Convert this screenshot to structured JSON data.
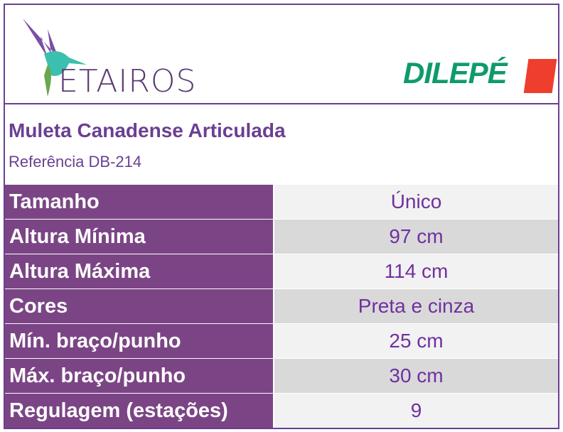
{
  "header": {
    "left_logo": "ETAIROS",
    "right_logo": "DILEPÉ"
  },
  "product": {
    "title": "Muleta Canadense Articulada",
    "reference": "Referência DB-214"
  },
  "colors": {
    "brand_purple": "#6b3f91",
    "label_bg": "#7b4585",
    "value_text": "#7030a0",
    "dilepe_green": "#0e9b6a",
    "dilepe_red": "#ef3e2e"
  },
  "specs": [
    {
      "label": "Tamanho",
      "value": "Único"
    },
    {
      "label": "Altura Mínima",
      "value": "97 cm"
    },
    {
      "label": "Altura Máxima",
      "value": "114 cm"
    },
    {
      "label": "Cores",
      "value": "Preta e cinza"
    },
    {
      "label": "Mín. braço/punho",
      "value": "25 cm"
    },
    {
      "label": "Máx. braço/punho",
      "value": "30 cm"
    },
    {
      "label": "Regulagem (estações)",
      "value": "9"
    }
  ]
}
